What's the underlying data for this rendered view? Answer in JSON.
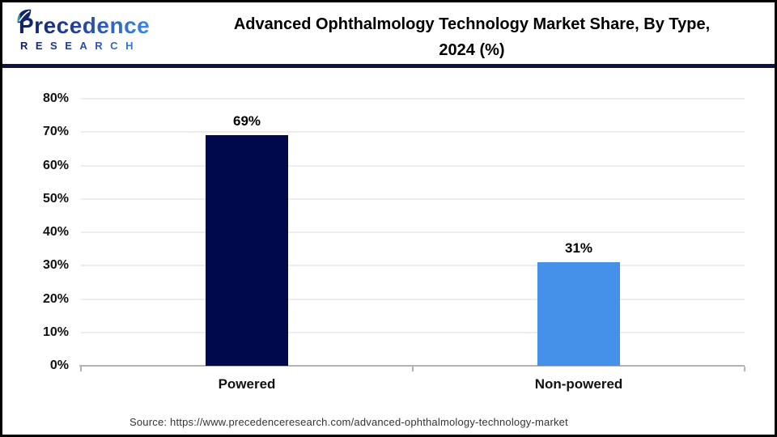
{
  "header": {
    "logo": {
      "brand": "Precedence",
      "sub": "RESEARCH",
      "leaf_icon": "leaf-icon",
      "gradient_start": "#0e1d5e",
      "gradient_end": "#3e87e6"
    },
    "title_line1": "Advanced Ophthalmology Technology Market Share, By Type,",
    "title_line2": "2024 (%)"
  },
  "chart_data": {
    "type": "bar",
    "title": "Advanced Ophthalmology Technology Market Share, By Type, 2024 (%)",
    "categories": [
      "Powered",
      "Non-powered"
    ],
    "values": [
      69,
      31
    ],
    "value_labels": [
      "69%",
      "31%"
    ],
    "bar_colors": [
      "#01094d",
      "#4591ea"
    ],
    "xlabel": "",
    "ylabel": "",
    "unit": "%",
    "ylim": [
      0,
      80
    ],
    "ytick_step": 10,
    "ytick_labels": [
      "0%",
      "10%",
      "20%",
      "30%",
      "40%",
      "50%",
      "60%",
      "70%",
      "80%"
    ],
    "grid": true,
    "legend": false
  },
  "footer": {
    "source": "Source: https://www.precedenceresearch.com/advanced-ophthalmology-technology-market"
  },
  "colors": {
    "separator": "#0d123f",
    "gridline": "#ededed",
    "axis": "#b3b3b3",
    "title_text": "#000000",
    "background": "#ffffff"
  }
}
